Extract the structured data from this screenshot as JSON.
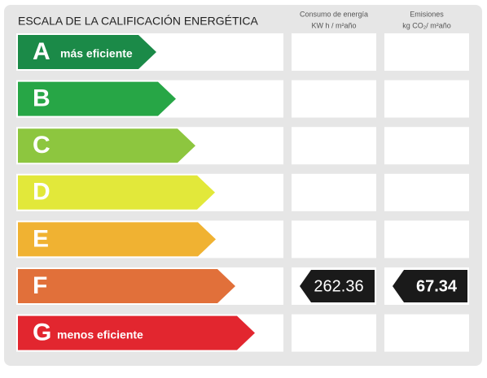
{
  "title": "ESCALA DE LA CALIFICACIÓN ENERGÉTICA",
  "columns": [
    {
      "title": "Consumo de energía",
      "unit": "KW h / m²año"
    },
    {
      "title": "Emisiones",
      "unit": "kg CO₂/ m²año"
    }
  ],
  "rows": [
    {
      "letter": "A",
      "label": "más eficiente",
      "color": "#1b8a48"
    },
    {
      "letter": "B",
      "color": "#27a646"
    },
    {
      "letter": "C",
      "color": "#8dc63f"
    },
    {
      "letter": "D",
      "color": "#e2e83a"
    },
    {
      "letter": "E",
      "color": "#f0b232"
    },
    {
      "letter": "F",
      "color": "#e1703a",
      "consumption": "262.36",
      "emissions": "67.34"
    },
    {
      "letter": "G",
      "label": "menos eficiente",
      "color": "#e2262f"
    }
  ]
}
